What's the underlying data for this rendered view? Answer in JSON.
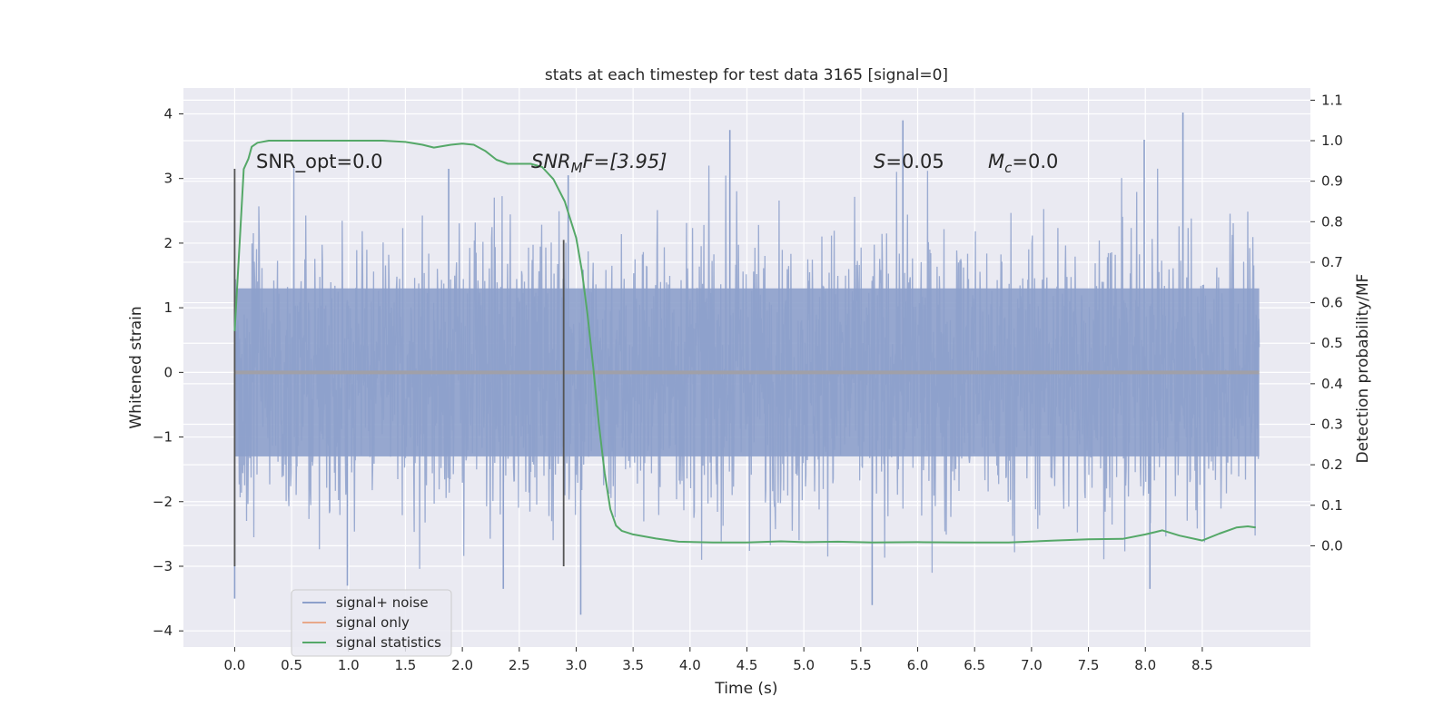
{
  "chart_data": {
    "type": "line",
    "title": "stats at each timestep for test data 3165 [signal=0]",
    "xlabel": "Time (s)",
    "ylabel": "Whitened strain",
    "y2label": "Detection probability/MF",
    "xlim": [
      -0.45,
      9.45
    ],
    "ylim": [
      -4.25,
      4.4
    ],
    "y2lim": [
      -0.25,
      1.13
    ],
    "xticks": [
      "0.0",
      "0.5",
      "1.0",
      "1.5",
      "2.0",
      "2.5",
      "3.0",
      "3.5",
      "4.0",
      "4.5",
      "5.0",
      "5.5",
      "6.0",
      "6.5",
      "7.0",
      "7.5",
      "8.0",
      "8.5"
    ],
    "yticks": [
      "4",
      "3",
      "2",
      "1",
      "0",
      "−1",
      "−2",
      "−3",
      "−4"
    ],
    "y2ticks": [
      "1.1",
      "1.0",
      "0.9",
      "0.8",
      "0.7",
      "0.6",
      "0.5",
      "0.4",
      "0.3",
      "0.2",
      "0.1",
      "0.0"
    ],
    "grid": true,
    "legend_placement": "lower-left",
    "annotations": {
      "snr_opt": "SNR_opt=0.0",
      "snr_mf_prefix": "SNR",
      "snr_mf_sub": "M",
      "snr_mf_suffix": "F=[3.95]",
      "s_var": "S",
      "s_value": "=0.05",
      "mc_var": "M",
      "mc_sub": "c",
      "mc_value": "=0.0"
    },
    "vertical_markers": [
      {
        "x": 0.0,
        "y": [
          -3.0,
          3.15
        ]
      },
      {
        "x": 2.89,
        "y": [
          -3.0,
          2.05
        ]
      }
    ],
    "series": [
      {
        "name": "signal+ noise",
        "axis": "left",
        "color": "#8da0cb",
        "x_range": [
          0.0,
          9.0
        ],
        "sample_count": 2250,
        "core_amplitude": 1.3,
        "peaks": [
          {
            "x": 4.35,
            "y": 3.75
          },
          {
            "x": 5.87,
            "y": 3.9
          },
          {
            "x": 8.33,
            "y": 4.02
          },
          {
            "x": 7.99,
            "y": 3.6
          },
          {
            "x": 2.93,
            "y": 3.05
          },
          {
            "x": 1.88,
            "y": 3.15
          },
          {
            "x": 5.6,
            "y": -3.6
          },
          {
            "x": 3.04,
            "y": -3.75
          },
          {
            "x": 0.0,
            "y": -3.5
          },
          {
            "x": 8.04,
            "y": -3.35
          },
          {
            "x": 0.99,
            "y": -3.3
          },
          {
            "x": 2.36,
            "y": -3.35
          }
        ]
      },
      {
        "name": "signal only",
        "axis": "left",
        "color": "#e8a88a",
        "x": [
          0.0,
          9.0
        ],
        "y": [
          0.0,
          0.0
        ]
      },
      {
        "name": "signal statistics",
        "axis": "right",
        "color": "#55a868",
        "x": [
          0.0,
          0.05,
          0.08,
          0.12,
          0.15,
          0.2,
          0.3,
          0.5,
          0.8,
          1.0,
          1.3,
          1.5,
          1.65,
          1.75,
          1.9,
          2.0,
          2.1,
          2.2,
          2.3,
          2.4,
          2.5,
          2.6,
          2.7,
          2.8,
          2.9,
          3.0,
          3.05,
          3.1,
          3.15,
          3.2,
          3.25,
          3.3,
          3.35,
          3.4,
          3.5,
          3.7,
          3.9,
          4.2,
          4.5,
          4.8,
          5.0,
          5.3,
          5.6,
          6.0,
          6.4,
          6.8,
          7.2,
          7.5,
          7.8,
          8.0,
          8.15,
          8.3,
          8.5,
          8.65,
          8.8,
          8.9,
          8.97
        ],
        "y": [
          0.53,
          0.78,
          0.93,
          0.955,
          0.985,
          0.995,
          1.0,
          1.0,
          1.0,
          1.0,
          1.0,
          0.997,
          0.99,
          0.983,
          0.99,
          0.993,
          0.99,
          0.975,
          0.953,
          0.943,
          0.943,
          0.943,
          0.935,
          0.905,
          0.85,
          0.76,
          0.68,
          0.57,
          0.44,
          0.3,
          0.18,
          0.09,
          0.05,
          0.037,
          0.028,
          0.018,
          0.01,
          0.008,
          0.008,
          0.011,
          0.009,
          0.01,
          0.008,
          0.009,
          0.008,
          0.008,
          0.013,
          0.016,
          0.017,
          0.028,
          0.038,
          0.025,
          0.013,
          0.03,
          0.045,
          0.048,
          0.045
        ]
      }
    ]
  }
}
